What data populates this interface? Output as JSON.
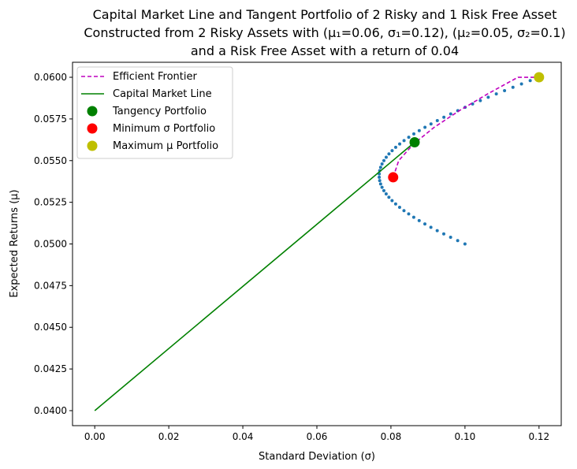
{
  "chart_data": {
    "type": "scatter",
    "title_lines": [
      "Capital Market Line and Tangent Portfolio of 2 Risky and 1 Risk Free Asset",
      "Constructed from 2 Risky Assets with (μ₁=0.06, σ₁=0.12), (μ₂=0.05, σ₂=0.1)",
      "and a Risk Free Asset with a return of 0.04"
    ],
    "xlabel": "Standard Deviation (σ)",
    "ylabel": "Expected Returns (μ)",
    "xlim": [
      -0.006,
      0.126
    ],
    "ylim": [
      0.0391,
      0.0609
    ],
    "x_ticks": [
      0.0,
      0.02,
      0.04,
      0.06,
      0.08,
      0.1,
      0.12
    ],
    "x_tick_labels": [
      "0.00",
      "0.02",
      "0.04",
      "0.06",
      "0.08",
      "0.10",
      "0.12"
    ],
    "y_ticks": [
      0.04,
      0.0425,
      0.045,
      0.0475,
      0.05,
      0.0525,
      0.055,
      0.0575,
      0.06
    ],
    "y_tick_labels": [
      "0.0400",
      "0.0425",
      "0.0450",
      "0.0475",
      "0.0500",
      "0.0525",
      "0.0550",
      "0.0575",
      "0.0600"
    ],
    "grid": false,
    "legend_position": "top-left",
    "asset_1": {
      "mu": 0.06,
      "sigma": 0.12
    },
    "asset_2": {
      "mu": 0.05,
      "sigma": 0.1
    },
    "risk_free_rate": 0.04,
    "portfolio_scatter": {
      "color": "#1f77b4",
      "weights_asset_1": [
        0.0,
        0.02,
        0.04,
        0.06,
        0.08,
        0.1,
        0.12,
        0.14,
        0.16,
        0.18,
        0.2,
        0.22,
        0.24,
        0.26,
        0.28,
        0.3,
        0.32,
        0.34,
        0.36,
        0.38,
        0.4,
        0.42,
        0.44,
        0.46,
        0.48,
        0.5,
        0.52,
        0.54,
        0.56,
        0.58,
        0.6,
        0.62,
        0.64,
        0.66,
        0.68,
        0.7,
        0.72,
        0.74,
        0.76,
        0.78,
        0.8,
        0.82,
        0.84,
        0.86,
        0.88,
        0.9,
        0.92,
        0.94,
        0.96,
        0.98,
        1.0
      ]
    },
    "series": [
      {
        "name": "Efficient Frontier",
        "kind": "line",
        "style": "dashed",
        "color": "#bf00bf",
        "x": [
          0.0806,
          0.0821,
          0.0861,
          0.0917,
          0.0985,
          0.1061,
          0.1143,
          0.12
        ],
        "y": [
          0.054,
          0.055,
          0.056,
          0.057,
          0.058,
          0.059,
          0.06,
          0.06
        ]
      },
      {
        "name": "Capital Market Line",
        "kind": "line",
        "style": "solid",
        "color": "#008000",
        "x": [
          0.0,
          0.0864
        ],
        "y": [
          0.04,
          0.0561
        ]
      },
      {
        "name": "Tangency Portfolio",
        "kind": "point",
        "color": "#008000",
        "x": 0.0864,
        "y": 0.0561
      },
      {
        "name": "Minimum σ Portfolio",
        "kind": "point",
        "color": "#ff0000",
        "x": 0.0806,
        "y": 0.054
      },
      {
        "name": "Maximum μ Portfolio",
        "kind": "point",
        "color": "#bfbf00",
        "x": 0.12,
        "y": 0.06
      }
    ],
    "legend": [
      {
        "label": "Efficient Frontier",
        "marker": "dashed-line",
        "color": "#bf00bf"
      },
      {
        "label": "Capital Market Line",
        "marker": "solid-line",
        "color": "#008000"
      },
      {
        "label": "Tangency Portfolio",
        "marker": "circle",
        "color": "#008000"
      },
      {
        "label": "Minimum σ Portfolio",
        "marker": "circle",
        "color": "#ff0000"
      },
      {
        "label": "Maximum μ Portfolio",
        "marker": "circle",
        "color": "#bfbf00"
      }
    ]
  }
}
